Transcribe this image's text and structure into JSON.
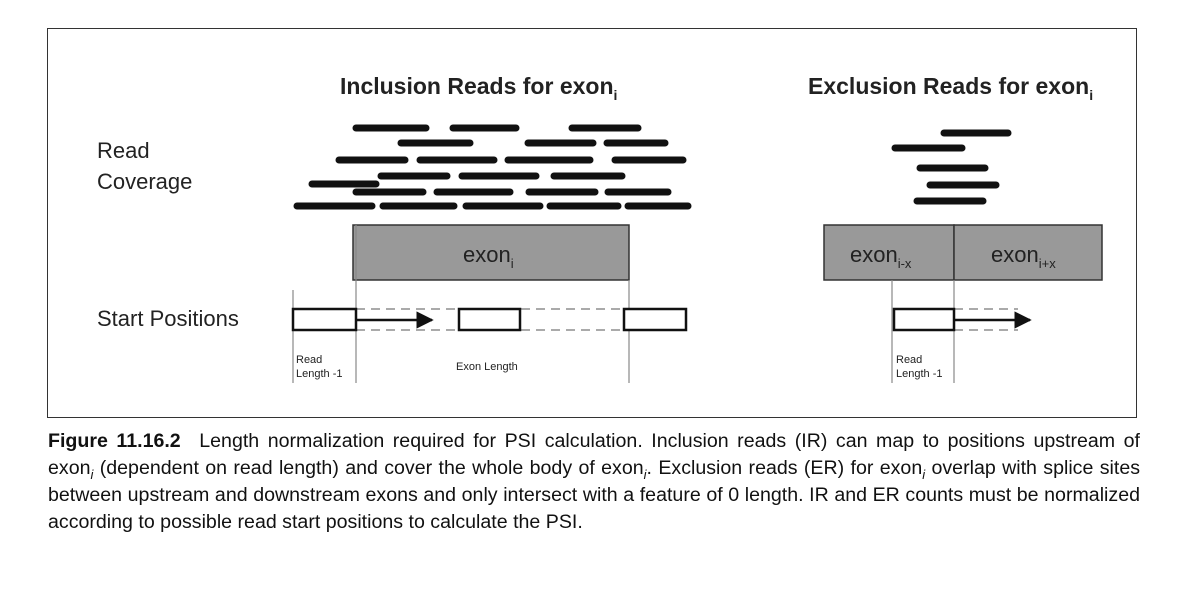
{
  "diagram": {
    "inclusion_title": "Inclusion Reads for exon",
    "inclusion_title_sub": "i",
    "exclusion_title": "Exclusion Reads for exon",
    "exclusion_title_sub": "i",
    "read_coverage_line1": "Read",
    "read_coverage_line2": "Coverage",
    "start_positions": "Start Positions",
    "exon_i": "exon",
    "exon_i_sub": "i",
    "exon_upstream": "exon",
    "exon_upstream_sub": "i-x",
    "exon_downstream": "exon",
    "exon_downstream_sub": "i+x",
    "read_length_line1": "Read",
    "read_length_line2": "Length -1",
    "exon_length": "Exon Length",
    "exclusion_read_length_line1": "Read",
    "exclusion_read_length_line2": "Length -1",
    "colors": {
      "read": "#111111",
      "exon_fill": "#999999",
      "exon_border": "#333333",
      "dashed": "#777777"
    }
  },
  "caption": {
    "label": "Figure 11.16.2",
    "parts": [
      "Length normalization required for PSI calculation. Inclusion reads (IR) can map to positions upstream of exon",
      "i",
      " (dependent on read length) and cover the whole body of exon",
      "i",
      ". Exclusion reads (ER) for exon",
      "i",
      " overlap with splice sites between upstream and downstream exons and only intersect with a feature of 0 length. IR and ER counts must be normalized according to possible read start positions to calculate the PSI."
    ]
  }
}
